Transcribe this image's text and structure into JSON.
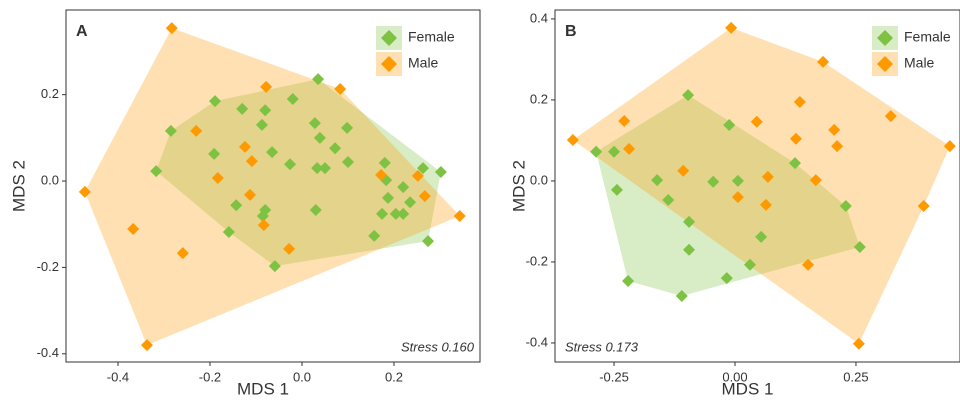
{
  "chart_data": [
    {
      "type": "scatter",
      "annotations": [
        "A",
        "Stress 0.160"
      ],
      "x_label": "MDS 1",
      "y_label": "MDS 2",
      "legend": "top-right",
      "xlim": [
        -0.513,
        0.387
      ],
      "ylim": [
        -0.419,
        0.396
      ],
      "xticks": [
        -0.4,
        -0.2,
        {
          "value": 0,
          "label": "0.0"
        },
        0.2
      ],
      "yticks": [
        -0.4,
        -0.2,
        {
          "value": 0,
          "label": "0.0"
        },
        0.2
      ],
      "series": [
        {
          "name": "Female",
          "color": "#7dc242",
          "x": [
            0.035,
            -0.189,
            -0.08,
            -0.285,
            -0.13,
            -0.087,
            -0.02,
            0.028,
            0.098,
            0.039,
            0.072,
            -0.191,
            -0.065,
            -0.026,
            0.1,
            -0.317,
            0.033,
            0.05,
            0.18,
            0.183,
            0.22,
            0.263,
            0.302,
            0.187,
            0.204,
            0.174,
            0.22,
            0.235,
            -0.143,
            -0.08,
            -0.085,
            0.03,
            0.157,
            0.274,
            -0.059,
            -0.159
          ],
          "y": [
            0.236,
            0.185,
            0.164,
            0.116,
            0.167,
            0.13,
            0.19,
            0.134,
            0.123,
            0.1,
            0.076,
            0.063,
            0.067,
            0.039,
            0.044,
            0.023,
            0.03,
            0.03,
            0.042,
            0.002,
            -0.014,
            0.03,
            0.021,
            -0.039,
            -0.076,
            -0.076,
            -0.076,
            -0.049,
            -0.056,
            -0.067,
            -0.081,
            -0.067,
            -0.127,
            -0.139,
            -0.197,
            -0.118
          ]
        },
        {
          "name": "Male",
          "color": "#ff9900",
          "x": [
            -0.283,
            -0.078,
            0.083,
            -0.23,
            -0.124,
            -0.109,
            0.172,
            0.252,
            -0.183,
            0.267,
            -0.113,
            0.343,
            -0.083,
            -0.028,
            -0.472,
            -0.367,
            -0.259,
            -0.337
          ],
          "y": [
            0.354,
            0.218,
            0.213,
            0.116,
            0.079,
            0.046,
            0.014,
            0.012,
            0.007,
            -0.035,
            -0.032,
            -0.081,
            -0.102,
            -0.157,
            -0.025,
            -0.111,
            -0.167,
            -0.38
          ]
        }
      ]
    },
    {
      "type": "scatter",
      "annotations": [
        "B",
        "Stress 0.173"
      ],
      "x_label": "MDS 1",
      "y_label": "MDS 2",
      "legend": "top-right",
      "xlim": [
        -0.372,
        0.465
      ],
      "ylim": [
        -0.447,
        0.422
      ],
      "xticks": [
        -0.25,
        {
          "value": 0,
          "label": "0.00"
        },
        0.25
      ],
      "yticks": [
        -0.4,
        -0.2,
        {
          "value": 0,
          "label": "0.0"
        },
        0.2,
        0.4
      ],
      "series": [
        {
          "name": "Female",
          "color": "#7dc242",
          "x": [
            -0.097,
            -0.012,
            -0.287,
            -0.25,
            -0.161,
            -0.045,
            0.006,
            0.124,
            -0.244,
            -0.138,
            -0.095,
            0.229,
            0.054,
            -0.095,
            0.258,
            0.031,
            -0.017,
            -0.221,
            -0.11
          ],
          "y": [
            0.212,
            0.138,
            0.072,
            0.072,
            0.002,
            -0.002,
            0.0,
            0.044,
            -0.022,
            -0.047,
            -0.101,
            -0.062,
            -0.138,
            -0.17,
            -0.163,
            -0.207,
            -0.24,
            -0.247,
            -0.284
          ]
        },
        {
          "name": "Male",
          "color": "#ff9900",
          "x": [
            -0.008,
            0.182,
            0.134,
            -0.229,
            0.045,
            0.205,
            -0.335,
            0.444,
            0.322,
            0.126,
            0.211,
            -0.219,
            -0.107,
            0.068,
            0.167,
            0.006,
            0.064,
            0.39,
            0.151,
            0.256
          ],
          "y": [
            0.378,
            0.294,
            0.195,
            0.148,
            0.146,
            0.126,
            0.101,
            0.086,
            0.16,
            0.104,
            0.086,
            0.079,
            0.025,
            0.01,
            0.002,
            -0.04,
            -0.059,
            -0.062,
            -0.207,
            -0.402
          ]
        }
      ]
    }
  ]
}
